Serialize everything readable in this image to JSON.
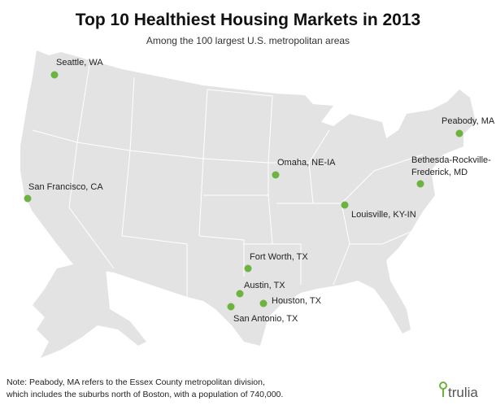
{
  "header": {
    "title": "Top 10 Healthiest Housing Markets in 2013",
    "subtitle": "Among the 100 largest U.S. metropolitan areas"
  },
  "markers": [
    {
      "lines": [
        "Seattle, WA"
      ]
    },
    {
      "lines": [
        "San Francisco, CA"
      ]
    },
    {
      "lines": [
        "Omaha, NE-IA"
      ]
    },
    {
      "lines": [
        "Peabody, MA"
      ]
    },
    {
      "lines": [
        "Bethesda-Rockville-",
        "Frederick, MD"
      ]
    },
    {
      "lines": [
        "Louisville, KY-IN"
      ]
    },
    {
      "lines": [
        "Fort Worth, TX"
      ]
    },
    {
      "lines": [
        "Austin, TX"
      ]
    },
    {
      "lines": [
        "Houston, TX"
      ]
    },
    {
      "lines": [
        "San Antonio, TX"
      ]
    }
  ],
  "footer": {
    "note": [
      "Note: Peabody, MA refers to the Essex County metropolitan division,",
      "which includes the suburbs north of Boston, with a population of 740,000."
    ],
    "logo": "trulia"
  }
}
